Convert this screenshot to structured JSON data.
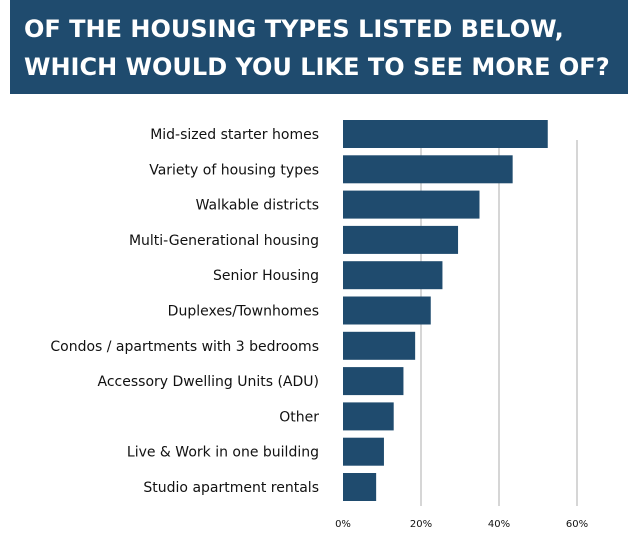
{
  "chart_data": {
    "type": "bar",
    "orientation": "horizontal",
    "title_lines": [
      "OF THE HOUSING TYPES LISTED BELOW,",
      "WHICH WOULD YOU LIKE TO SEE MORE OF?"
    ],
    "categories": [
      "Mid-sized starter homes",
      "Variety of housing types",
      "Walkable districts",
      "Multi-Generational housing",
      "Senior Housing",
      "Duplexes/Townhomes",
      "Condos / apartments with 3 bedrooms",
      "Accessory Dwelling Units (ADU)",
      "Other",
      "Live & Work in one building",
      "Studio apartment rentals"
    ],
    "values": [
      52.5,
      43.5,
      35,
      29.5,
      25.5,
      22.5,
      18.5,
      15.5,
      13,
      10.5,
      8.5
    ],
    "xlim": [
      0,
      60
    ],
    "xticks": [
      "0%",
      "20%",
      "40%",
      "60%"
    ],
    "xlabel": "",
    "ylabel": "",
    "grid": true,
    "bar_color": "#1f4b6e",
    "title_bg_color": "#1f4b6e",
    "gridline_color": "#c8c8c8"
  }
}
